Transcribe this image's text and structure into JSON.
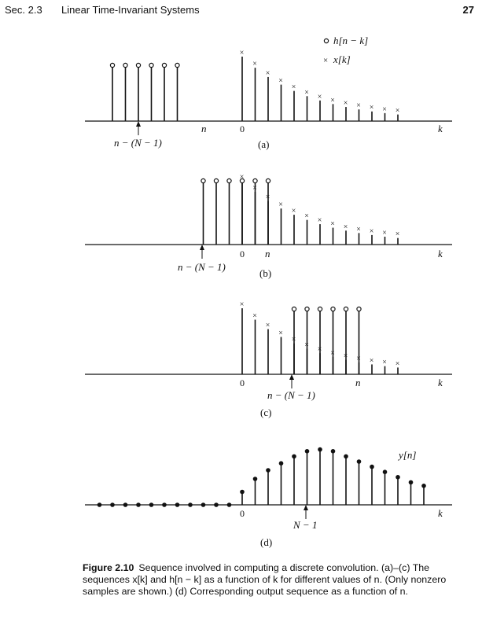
{
  "header": {
    "section": "Sec. 2.3",
    "title": "Linear Time-Invariant Systems",
    "page_number": "27"
  },
  "legend": {
    "h_label": "h[n − k]",
    "x_label": "x[k]"
  },
  "panels": {
    "a": {
      "tag": "(a)",
      "labels": {
        "window_start": "n − (N − 1)",
        "n": "n",
        "zero": "0",
        "k": "k"
      }
    },
    "b": {
      "tag": "(b)",
      "labels": {
        "window_start": "n − (N − 1)",
        "n": "n",
        "zero": "0",
        "k": "k"
      }
    },
    "c": {
      "tag": "(c)",
      "labels": {
        "window_start": "n − (N − 1)",
        "n": "n",
        "zero": "0",
        "k": "k"
      }
    },
    "d": {
      "tag": "(d)",
      "labels": {
        "output": "y[n]",
        "n_minus_1": "N − 1",
        "zero": "0",
        "k": "k"
      }
    }
  },
  "caption": {
    "label": "Figure 2.10",
    "text": "Sequence involved in computing a discrete convolution. (a)–(c) The sequences x[k] and h[n − k] as a function of k for different values of n. (Only nonzero samples are shown.) (d) Corresponding output sequence as a function of n."
  },
  "chart_data": [
    {
      "type": "stem",
      "panel": "a",
      "h_window_k": [
        -10,
        -9,
        -8,
        -7,
        -6,
        -5
      ],
      "x_k": [
        0,
        1,
        2,
        3,
        4,
        5,
        6,
        7,
        8,
        9,
        10,
        11,
        12
      ]
    },
    {
      "type": "stem",
      "panel": "b",
      "h_window_k": [
        -3,
        -2,
        -1,
        0,
        1,
        2
      ],
      "x_k": [
        0,
        1,
        2,
        3,
        4,
        5,
        6,
        7,
        8,
        9,
        10,
        11,
        12
      ]
    },
    {
      "type": "stem",
      "panel": "c",
      "h_window_k": [
        4,
        5,
        6,
        7,
        8,
        9
      ],
      "x_k": [
        0,
        1,
        2,
        3,
        4,
        5,
        6,
        7,
        8,
        9,
        10,
        11,
        12
      ]
    },
    {
      "type": "stem",
      "panel": "d",
      "y": [
        0,
        0,
        0,
        0,
        0,
        0,
        0,
        0,
        0,
        0,
        0,
        0.15,
        0.3,
        0.4,
        0.48,
        0.56,
        0.62,
        0.64,
        0.62,
        0.56,
        0.5,
        0.44,
        0.38,
        0.32,
        0.26,
        0.22
      ]
    }
  ]
}
